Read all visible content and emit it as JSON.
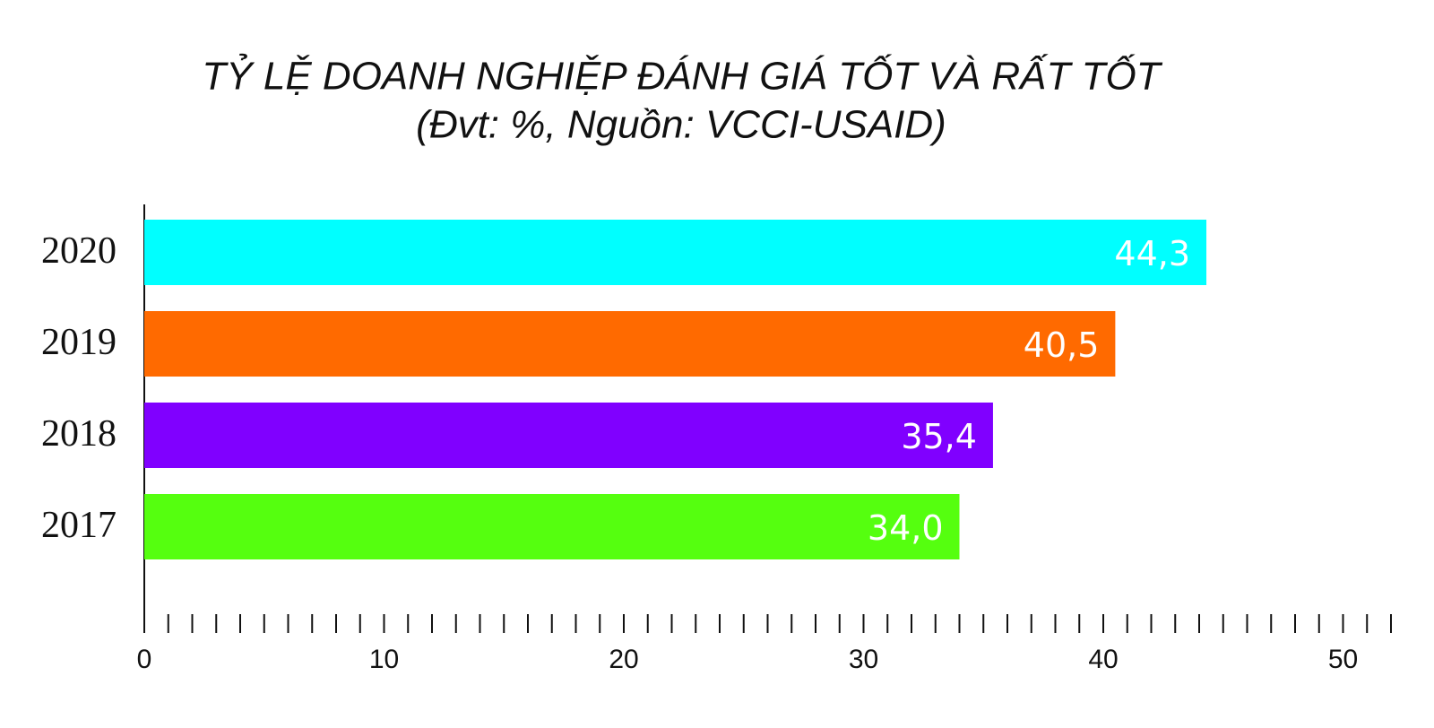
{
  "chart_data": {
    "type": "hbar",
    "title": "TỶ LỆ DOANH NGHIỆP ĐÁNH GIÁ TỐT VÀ RẤT TỐT",
    "subtitle": "(Đvt: %, Nguồn: VCCI-USAID)",
    "categories": [
      "2020",
      "2019",
      "2018",
      "2017"
    ],
    "values": [
      44.3,
      40.5,
      35.4,
      34.0
    ],
    "value_labels": [
      "44,3",
      "40,5",
      "35,4",
      "34,0"
    ],
    "colors": [
      "#00ffff",
      "#ff6a00",
      "#8000ff",
      "#55ff0f"
    ],
    "xlim": [
      0,
      52
    ],
    "xticks": [
      0,
      10,
      20,
      30,
      40,
      50
    ],
    "minor_xticks": [
      1,
      2,
      3,
      4,
      5,
      6,
      7,
      8,
      9,
      10,
      11,
      12,
      13,
      14,
      15,
      16,
      17,
      18,
      19,
      20,
      21,
      22,
      23,
      24,
      25,
      26,
      27,
      28,
      29,
      30,
      31,
      32,
      33,
      34,
      35,
      36,
      37,
      38,
      39,
      40,
      41,
      42,
      43,
      44,
      45,
      46,
      47,
      48,
      49,
      50,
      51,
      52
    ]
  }
}
